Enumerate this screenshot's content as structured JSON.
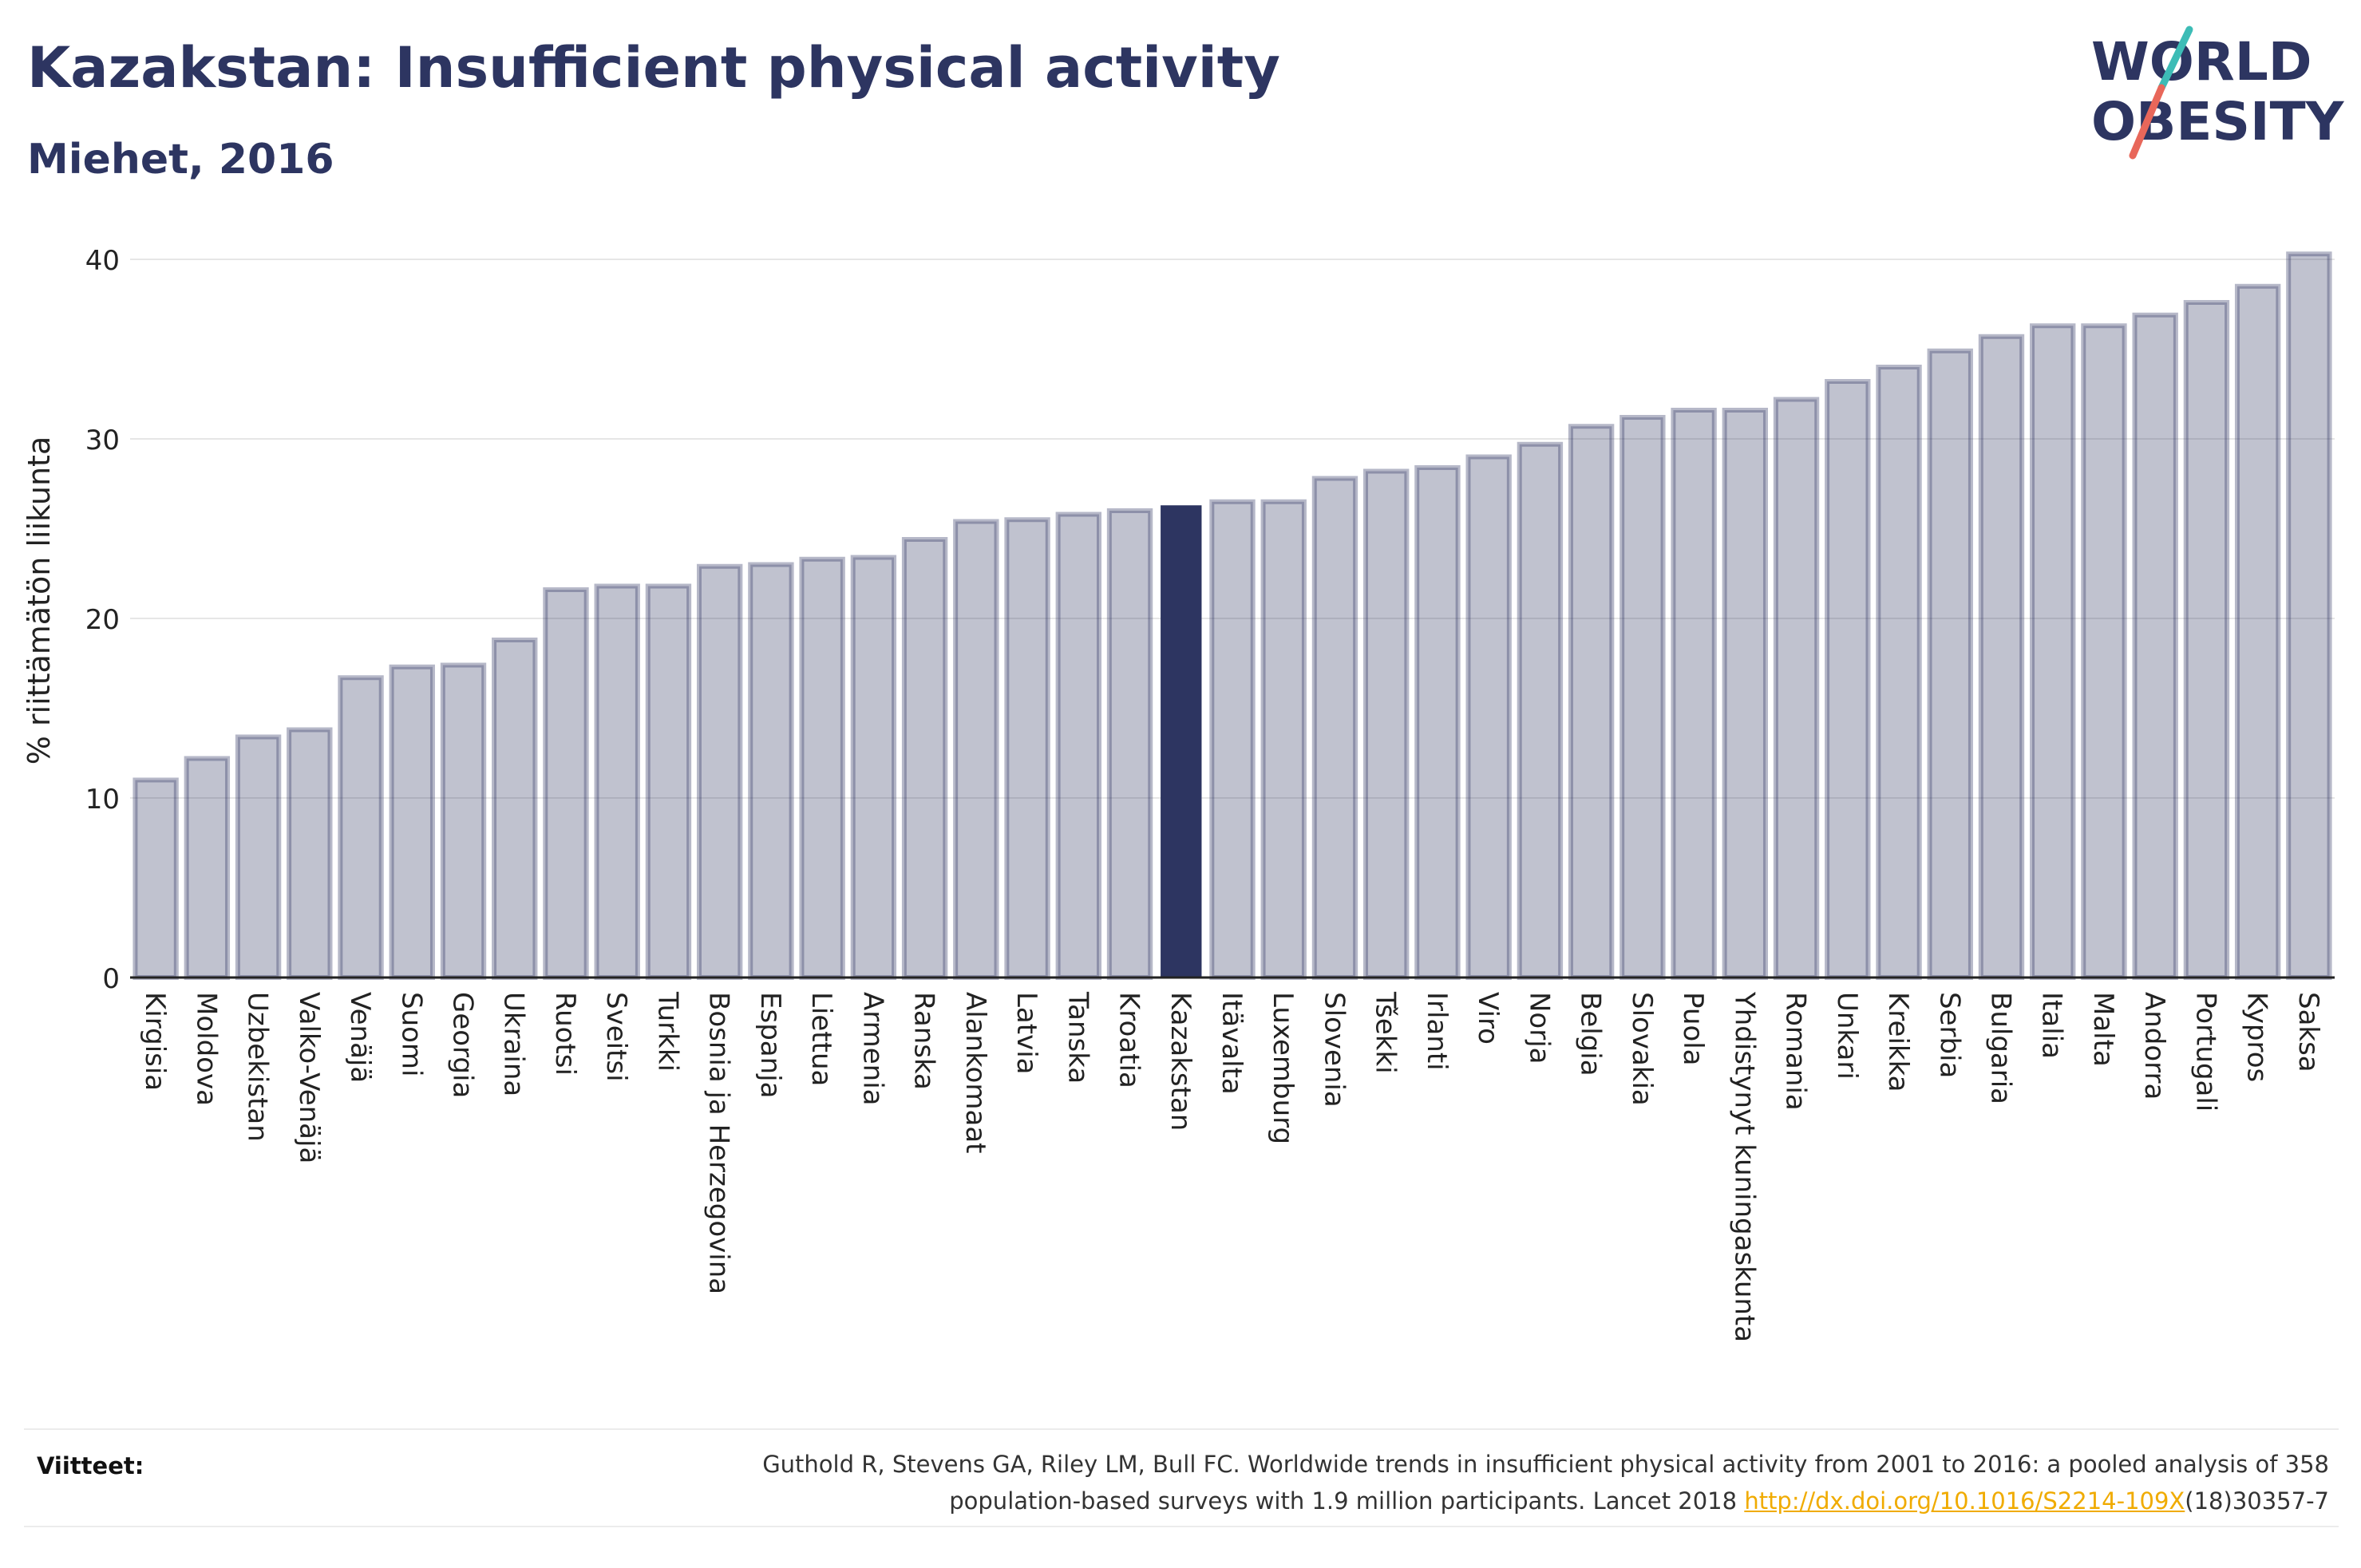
{
  "header": {
    "title": "Kazakstan: Insufficient physical activity",
    "subtitle": "Miehet, 2016"
  },
  "logo": {
    "line1": "WORLD",
    "line2": "OBESITY",
    "colors": {
      "text": "#2d3561",
      "slash_red": "#e8675a",
      "slash_teal": "#3dbcb6"
    }
  },
  "chart_data": {
    "type": "bar",
    "title": "Kazakstan: Insufficient physical activity",
    "subtitle": "Miehet, 2016",
    "xlabel": "",
    "ylabel": "% riittämätön liikunta",
    "ylim": [
      0,
      42
    ],
    "yticks": [
      0,
      10,
      20,
      30,
      40
    ],
    "grid": true,
    "highlight": "Kazakstan",
    "colors": {
      "bar": "#2d3561",
      "bar_fill_opacity": 0.3,
      "highlight": "#2d3561"
    },
    "categories": [
      "Kirgisia",
      "Moldova",
      "Uzbekistan",
      "Valko-Venäjä",
      "Venäjä",
      "Suomi",
      "Georgia",
      "Ukraina",
      "Ruotsi",
      "Sveitsi",
      "Turkki",
      "Bosnia ja Herzegovina",
      "Espanja",
      "Liettua",
      "Armenia",
      "Ranska",
      "Alankomaat",
      "Latvia",
      "Tanska",
      "Kroatia",
      "Kazakstan",
      "Itävalta",
      "Luxemburg",
      "Slovenia",
      "Tšekki",
      "Irlanti",
      "Viro",
      "Norja",
      "Belgia",
      "Slovakia",
      "Puola",
      "Yhdistynyt kuningaskunta",
      "Romania",
      "Unkari",
      "Kreikka",
      "Serbia",
      "Bulgaria",
      "Italia",
      "Malta",
      "Andorra",
      "Portugali",
      "Kypros",
      "Saksa"
    ],
    "values": [
      11.0,
      12.2,
      13.4,
      13.8,
      16.7,
      17.3,
      17.4,
      18.8,
      21.6,
      21.8,
      21.8,
      22.9,
      23.0,
      23.3,
      23.4,
      24.4,
      25.4,
      25.5,
      25.8,
      26.0,
      26.3,
      26.5,
      26.5,
      27.8,
      28.2,
      28.4,
      29.0,
      29.7,
      30.7,
      31.2,
      31.6,
      31.6,
      32.2,
      33.2,
      34.0,
      34.9,
      35.7,
      36.3,
      36.3,
      36.9,
      37.6,
      38.5,
      40.3
    ]
  },
  "references": {
    "label": "Viitteet:",
    "text_line1": "Guthold R, Stevens GA, Riley LM, Bull FC. Worldwide trends in insufficient physical activity from 2001 to 2016: a pooled analysis of 358",
    "text_line2_prefix": "population-based surveys with 1.9 million participants. Lancet 2018 ",
    "link": "http://dx.doi.org/10.1016/S2214-109X",
    "text_line2_suffix": "(18)30357-7"
  }
}
